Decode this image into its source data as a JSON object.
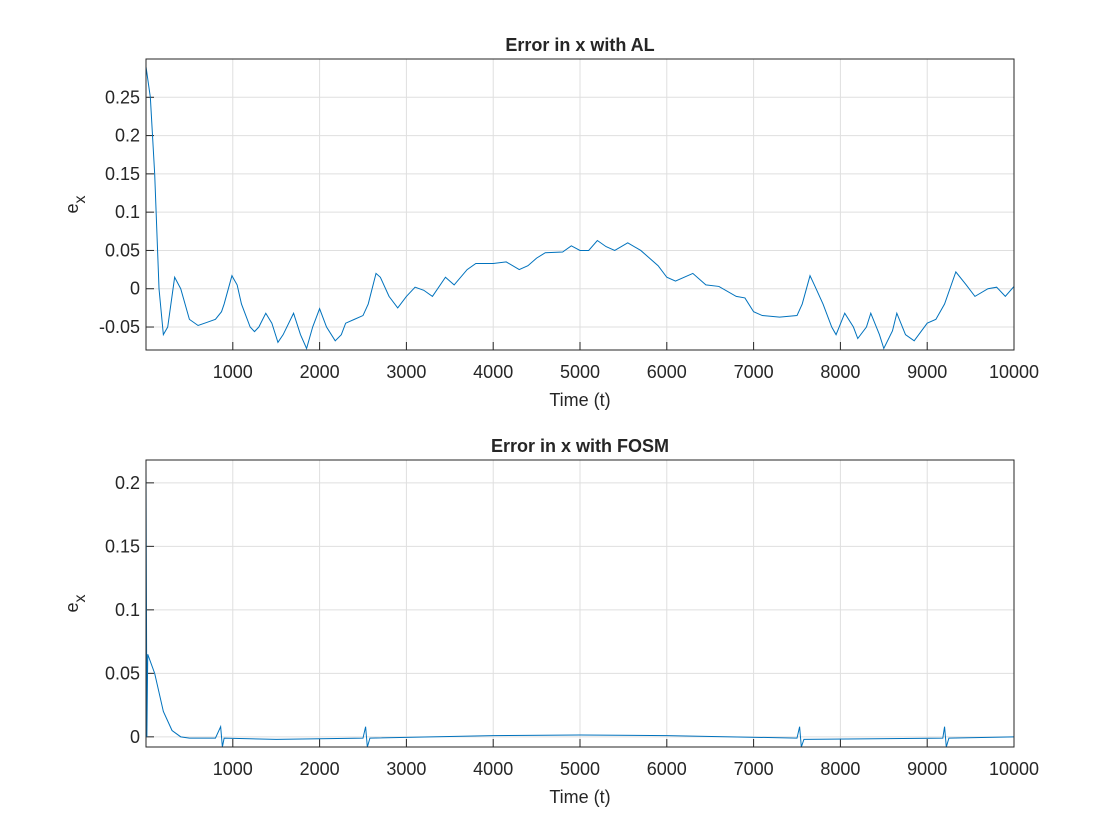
{
  "chart_data": [
    {
      "type": "line",
      "title": "Error in x with AL",
      "xlabel": "Time (t)",
      "ylabel": "e",
      "ylabel_subscript": "x",
      "color": "#0072bd",
      "grid": true,
      "xlim": [
        0,
        10000
      ],
      "xticks": [
        1000,
        2000,
        3000,
        4000,
        5000,
        6000,
        7000,
        8000,
        9000,
        10000
      ],
      "ylim": [
        -0.08,
        0.3
      ],
      "yticks": [
        -0.05,
        0,
        0.05,
        0.1,
        0.15,
        0.2,
        0.25
      ],
      "x": [
        0,
        50,
        100,
        150,
        200,
        250,
        330,
        400,
        500,
        600,
        700,
        800,
        870,
        900,
        990,
        1050,
        1100,
        1200,
        1250,
        1300,
        1380,
        1450,
        1520,
        1580,
        1700,
        1780,
        1850,
        1920,
        2000,
        2080,
        2180,
        2250,
        2300,
        2400,
        2500,
        2560,
        2650,
        2700,
        2800,
        2900,
        3000,
        3100,
        3200,
        3300,
        3450,
        3550,
        3700,
        3800,
        4000,
        4150,
        4300,
        4400,
        4500,
        4600,
        4800,
        4900,
        5000,
        5100,
        5200,
        5300,
        5400,
        5550,
        5700,
        5900,
        6000,
        6100,
        6300,
        6450,
        6600,
        6800,
        6900,
        7000,
        7100,
        7300,
        7500,
        7560,
        7650,
        7700,
        7800,
        7900,
        7950,
        8050,
        8150,
        8200,
        8300,
        8350,
        8450,
        8500,
        8600,
        8650,
        8750,
        8850,
        9000,
        9100,
        9200,
        9330,
        9450,
        9550,
        9700,
        9800,
        9900,
        10000
      ],
      "values": [
        0.29,
        0.25,
        0.15,
        0.0,
        -0.06,
        -0.05,
        0.015,
        0.0,
        -0.04,
        -0.048,
        -0.044,
        -0.04,
        -0.03,
        -0.02,
        0.017,
        0.005,
        -0.02,
        -0.05,
        -0.056,
        -0.05,
        -0.032,
        -0.045,
        -0.07,
        -0.06,
        -0.032,
        -0.06,
        -0.078,
        -0.05,
        -0.026,
        -0.05,
        -0.068,
        -0.06,
        -0.045,
        -0.04,
        -0.035,
        -0.02,
        0.02,
        0.015,
        -0.01,
        -0.025,
        -0.01,
        0.002,
        -0.002,
        -0.01,
        0.015,
        0.005,
        0.025,
        0.033,
        0.033,
        0.035,
        0.025,
        0.03,
        0.04,
        0.047,
        0.048,
        0.056,
        0.05,
        0.05,
        0.063,
        0.055,
        0.05,
        0.06,
        0.05,
        0.03,
        0.015,
        0.01,
        0.02,
        0.005,
        0.003,
        -0.01,
        -0.012,
        -0.03,
        -0.035,
        -0.037,
        -0.035,
        -0.02,
        0.017,
        0.005,
        -0.02,
        -0.05,
        -0.06,
        -0.032,
        -0.05,
        -0.065,
        -0.05,
        -0.032,
        -0.06,
        -0.078,
        -0.055,
        -0.032,
        -0.06,
        -0.068,
        -0.045,
        -0.04,
        -0.02,
        0.022,
        0.005,
        -0.01,
        0.0,
        0.002,
        -0.01,
        0.003
      ]
    },
    {
      "type": "line",
      "title": "Error in x with FOSM",
      "xlabel": "Time (t)",
      "ylabel": "e",
      "ylabel_subscript": "x",
      "color": "#0072bd",
      "grid": true,
      "xlim": [
        0,
        10000
      ],
      "xticks": [
        1000,
        2000,
        3000,
        4000,
        5000,
        6000,
        7000,
        8000,
        9000,
        10000
      ],
      "ylim": [
        -0.008,
        0.218
      ],
      "yticks": [
        0,
        0.05,
        0.1,
        0.15,
        0.2
      ],
      "x": [
        0,
        10,
        20,
        100,
        200,
        300,
        400,
        500,
        800,
        860,
        880,
        900,
        1500,
        2500,
        2530,
        2550,
        2580,
        4000,
        5000,
        6000,
        7500,
        7530,
        7550,
        7580,
        9180,
        9200,
        9220,
        9250,
        10000
      ],
      "values": [
        0.215,
        0.0,
        0.065,
        0.05,
        0.02,
        0.005,
        0.0,
        -0.001,
        -0.001,
        0.008,
        -0.008,
        -0.001,
        -0.002,
        -0.001,
        0.008,
        -0.008,
        -0.001,
        0.001,
        0.0015,
        0.001,
        -0.001,
        0.008,
        -0.008,
        -0.002,
        -0.001,
        0.008,
        -0.008,
        -0.001,
        0.0
      ]
    }
  ]
}
